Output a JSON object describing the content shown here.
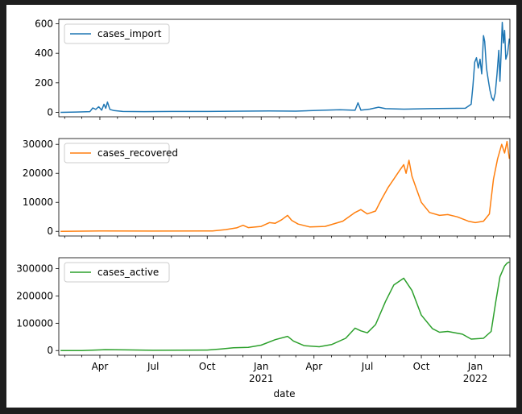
{
  "chart_data": {
    "type": "line",
    "xlabel": "date",
    "x_range": [
      "2020-01-22",
      "2022-03-01"
    ],
    "x_ticks": [
      {
        "date": "2020-04-01",
        "label": "Apr",
        "sub": ""
      },
      {
        "date": "2020-07-01",
        "label": "Jul",
        "sub": ""
      },
      {
        "date": "2020-10-01",
        "label": "Oct",
        "sub": ""
      },
      {
        "date": "2021-01-01",
        "label": "Jan",
        "sub": "2021"
      },
      {
        "date": "2021-04-01",
        "label": "Apr",
        "sub": ""
      },
      {
        "date": "2021-07-01",
        "label": "Jul",
        "sub": ""
      },
      {
        "date": "2021-10-01",
        "label": "Oct",
        "sub": ""
      },
      {
        "date": "2022-01-01",
        "label": "Jan",
        "sub": "2022"
      }
    ],
    "panels": [
      {
        "series_name": "cases_import",
        "color": "#1f77b4",
        "ylim": [
          -30,
          630
        ],
        "yticks": [
          0,
          200,
          400,
          600
        ],
        "ytick_labels": [
          "0",
          "200",
          "400",
          "600"
        ],
        "points": [
          [
            "2020-01-25",
            0
          ],
          [
            "2020-02-20",
            2
          ],
          [
            "2020-03-15",
            5
          ],
          [
            "2020-03-20",
            30
          ],
          [
            "2020-03-25",
            20
          ],
          [
            "2020-03-30",
            38
          ],
          [
            "2020-04-04",
            15
          ],
          [
            "2020-04-08",
            55
          ],
          [
            "2020-04-11",
            28
          ],
          [
            "2020-04-14",
            70
          ],
          [
            "2020-04-18",
            20
          ],
          [
            "2020-04-25",
            12
          ],
          [
            "2020-05-10",
            6
          ],
          [
            "2020-06-15",
            5
          ],
          [
            "2020-08-01",
            6
          ],
          [
            "2020-10-01",
            6
          ],
          [
            "2020-12-01",
            8
          ],
          [
            "2021-01-15",
            10
          ],
          [
            "2021-03-01",
            8
          ],
          [
            "2021-04-15",
            14
          ],
          [
            "2021-05-15",
            18
          ],
          [
            "2021-06-10",
            14
          ],
          [
            "2021-06-15",
            65
          ],
          [
            "2021-06-20",
            15
          ],
          [
            "2021-07-05",
            22
          ],
          [
            "2021-07-20",
            35
          ],
          [
            "2021-08-01",
            25
          ],
          [
            "2021-09-01",
            22
          ],
          [
            "2021-10-15",
            25
          ],
          [
            "2021-12-15",
            28
          ],
          [
            "2021-12-25",
            55
          ],
          [
            "2021-12-28",
            180
          ],
          [
            "2021-12-31",
            340
          ],
          [
            "2022-01-03",
            370
          ],
          [
            "2022-01-06",
            300
          ],
          [
            "2022-01-09",
            360
          ],
          [
            "2022-01-12",
            260
          ],
          [
            "2022-01-15",
            520
          ],
          [
            "2022-01-17",
            480
          ],
          [
            "2022-01-20",
            300
          ],
          [
            "2022-01-23",
            220
          ],
          [
            "2022-01-26",
            150
          ],
          [
            "2022-01-29",
            100
          ],
          [
            "2022-02-01",
            80
          ],
          [
            "2022-02-04",
            130
          ],
          [
            "2022-02-07",
            260
          ],
          [
            "2022-02-10",
            420
          ],
          [
            "2022-02-12",
            210
          ],
          [
            "2022-02-14",
            400
          ],
          [
            "2022-02-16",
            610
          ],
          [
            "2022-02-18",
            470
          ],
          [
            "2022-02-20",
            555
          ],
          [
            "2022-02-22",
            360
          ],
          [
            "2022-02-25",
            400
          ],
          [
            "2022-02-28",
            500
          ]
        ]
      },
      {
        "series_name": "cases_recovered",
        "color": "#ff7f0e",
        "ylim": [
          -1600,
          32000
        ],
        "yticks": [
          0,
          10000,
          20000,
          30000
        ],
        "ytick_labels": [
          "0",
          "10000",
          "20000",
          "30000"
        ],
        "points": [
          [
            "2020-01-25",
            0
          ],
          [
            "2020-04-01",
            150
          ],
          [
            "2020-07-01",
            100
          ],
          [
            "2020-10-10",
            150
          ],
          [
            "2020-11-01",
            600
          ],
          [
            "2020-11-20",
            1200
          ],
          [
            "2020-12-01",
            2100
          ],
          [
            "2020-12-10",
            1300
          ],
          [
            "2021-01-01",
            1700
          ],
          [
            "2021-01-15",
            3000
          ],
          [
            "2021-01-25",
            2800
          ],
          [
            "2021-02-05",
            4000
          ],
          [
            "2021-02-15",
            5500
          ],
          [
            "2021-02-22",
            3800
          ],
          [
            "2021-03-05",
            2500
          ],
          [
            "2021-03-25",
            1500
          ],
          [
            "2021-04-20",
            1700
          ],
          [
            "2021-05-20",
            3500
          ],
          [
            "2021-06-10",
            6500
          ],
          [
            "2021-06-20",
            7500
          ],
          [
            "2021-07-01",
            6000
          ],
          [
            "2021-07-15",
            7000
          ],
          [
            "2021-07-25",
            11000
          ],
          [
            "2021-08-05",
            15000
          ],
          [
            "2021-08-15",
            18000
          ],
          [
            "2021-08-25",
            21000
          ],
          [
            "2021-09-01",
            23000
          ],
          [
            "2021-09-05",
            20000
          ],
          [
            "2021-09-10",
            24500
          ],
          [
            "2021-09-15",
            19000
          ],
          [
            "2021-09-22",
            15000
          ],
          [
            "2021-10-01",
            10000
          ],
          [
            "2021-10-15",
            6500
          ],
          [
            "2021-11-01",
            5500
          ],
          [
            "2021-11-15",
            5800
          ],
          [
            "2021-12-01",
            5000
          ],
          [
            "2021-12-20",
            3500
          ],
          [
            "2022-01-01",
            3000
          ],
          [
            "2022-01-15",
            3500
          ],
          [
            "2022-01-25",
            6000
          ],
          [
            "2022-02-01",
            18000
          ],
          [
            "2022-02-08",
            25000
          ],
          [
            "2022-02-15",
            30000
          ],
          [
            "2022-02-20",
            27000
          ],
          [
            "2022-02-24",
            31000
          ],
          [
            "2022-02-28",
            25000
          ]
        ]
      },
      {
        "series_name": "cases_active",
        "color": "#2ca02c",
        "ylim": [
          -17000,
          340000
        ],
        "yticks": [
          0,
          100000,
          200000,
          300000
        ],
        "ytick_labels": [
          "0",
          "100000",
          "200000",
          "300000"
        ],
        "points": [
          [
            "2020-01-25",
            0
          ],
          [
            "2020-03-01",
            200
          ],
          [
            "2020-04-10",
            3500
          ],
          [
            "2020-05-15",
            2500
          ],
          [
            "2020-07-01",
            1000
          ],
          [
            "2020-10-01",
            2000
          ],
          [
            "2020-10-25",
            6000
          ],
          [
            "2020-11-15",
            10000
          ],
          [
            "2020-12-10",
            12000
          ],
          [
            "2021-01-01",
            20000
          ],
          [
            "2021-01-25",
            40000
          ],
          [
            "2021-02-15",
            52000
          ],
          [
            "2021-02-25",
            35000
          ],
          [
            "2021-03-15",
            18000
          ],
          [
            "2021-04-10",
            14000
          ],
          [
            "2021-05-01",
            22000
          ],
          [
            "2021-05-25",
            45000
          ],
          [
            "2021-06-10",
            82000
          ],
          [
            "2021-06-20",
            72000
          ],
          [
            "2021-07-01",
            65000
          ],
          [
            "2021-07-15",
            95000
          ],
          [
            "2021-08-01",
            180000
          ],
          [
            "2021-08-15",
            240000
          ],
          [
            "2021-09-01",
            265000
          ],
          [
            "2021-09-15",
            220000
          ],
          [
            "2021-10-01",
            130000
          ],
          [
            "2021-10-20",
            80000
          ],
          [
            "2021-11-01",
            67000
          ],
          [
            "2021-11-15",
            70000
          ],
          [
            "2021-12-10",
            60000
          ],
          [
            "2021-12-25",
            42000
          ],
          [
            "2022-01-15",
            45000
          ],
          [
            "2022-01-28",
            70000
          ],
          [
            "2022-02-05",
            180000
          ],
          [
            "2022-02-12",
            270000
          ],
          [
            "2022-02-20",
            310000
          ],
          [
            "2022-02-24",
            320000
          ],
          [
            "2022-02-28",
            325000
          ]
        ]
      }
    ]
  }
}
